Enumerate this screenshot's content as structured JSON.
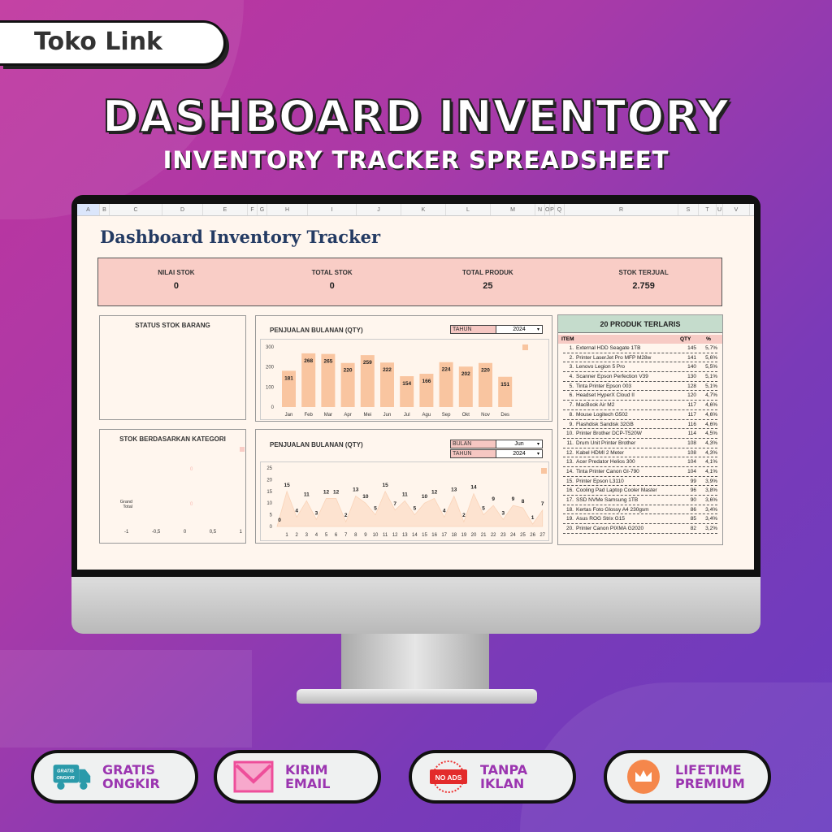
{
  "brand": "Toko Link",
  "header": {
    "title": "DASHBOARD INVENTORY",
    "subtitle": "INVENTORY TRACKER SPREADSHEET"
  },
  "sheet": {
    "columns": [
      "A",
      "B",
      "C",
      "D",
      "E",
      "F",
      "G",
      "H",
      "I",
      "J",
      "K",
      "L",
      "M",
      "N",
      "O",
      "P",
      "Q",
      "R",
      "S",
      "T",
      "U",
      "V"
    ],
    "title": "Dashboard Inventory Tracker",
    "kpis": [
      {
        "label": "NILAI STOK",
        "value": "0"
      },
      {
        "label": "TOTAL STOK",
        "value": "0"
      },
      {
        "label": "TOTAL PRODUK",
        "value": "25"
      },
      {
        "label": "STOK TERJUAL",
        "value": "2.759"
      }
    ],
    "status_panel": {
      "title": "STATUS STOK BARANG"
    },
    "kategori_panel": {
      "title": "STOK BERDASARKAN KATEGORI",
      "category_label": "Grand Total",
      "data_labels": [
        "0",
        "0"
      ],
      "x_ticks": [
        "-1",
        "-0,5",
        "0",
        "0,5",
        "1"
      ]
    },
    "monthly": {
      "title": "PENJUALAN BULANAN (QTY)",
      "filter_label": "TAHUN",
      "filter_value": "2024"
    },
    "daily": {
      "title": "PENJUALAN BULANAN (QTY)",
      "month_label": "BULAN",
      "month_value": "Jun",
      "year_label": "TAHUN",
      "year_value": "2024"
    },
    "top20": {
      "title": "20 PRODUK TERLARIS",
      "headers": [
        "ITEM",
        "QTY",
        "%"
      ],
      "rows": [
        [
          "1.",
          "External HDD Seagate 1TB",
          "145",
          "5,7%"
        ],
        [
          "2.",
          "Printer LaserJet Pro MFP M28w",
          "141",
          "5,6%"
        ],
        [
          "3.",
          "Lenovo Legion 5 Pro",
          "140",
          "5,5%"
        ],
        [
          "4.",
          "Scanner Epson Perfection V39",
          "130",
          "5,1%"
        ],
        [
          "5.",
          "Tinta Printer Epson 003",
          "128",
          "5,1%"
        ],
        [
          "6.",
          "Headset HyperX Cloud II",
          "120",
          "4,7%"
        ],
        [
          "7.",
          "MacBook Air M2",
          "117",
          "4,6%"
        ],
        [
          "8.",
          "Mouse Logitech G502",
          "117",
          "4,6%"
        ],
        [
          "9.",
          "Flashdisk Sandisk 32GB",
          "116",
          "4,6%"
        ],
        [
          "10.",
          "Printer Brother DCP-T520W",
          "114",
          "4,5%"
        ],
        [
          "11.",
          "Drum Unit Printer Brother",
          "108",
          "4,3%"
        ],
        [
          "12.",
          "Kabel HDMI 2 Meter",
          "108",
          "4,3%"
        ],
        [
          "13.",
          "Acer Predator Helios 300",
          "104",
          "4,1%"
        ],
        [
          "14.",
          "Tinta Printer Canon GI-790",
          "104",
          "4,1%"
        ],
        [
          "15.",
          "Printer Epson L3110",
          "99",
          "3,9%"
        ],
        [
          "16.",
          "Cooling Pad Laptop Cooler Master",
          "96",
          "3,8%"
        ],
        [
          "17.",
          "SSD NVMe Samsung 1TB",
          "90",
          "3,6%"
        ],
        [
          "18.",
          "Kertas Foto Glossy A4 230gsm",
          "86",
          "3,4%"
        ],
        [
          "19.",
          "Asus ROG Strix G15",
          "85",
          "3,4%"
        ],
        [
          "20.",
          "Printer Canon PIXMA G2020",
          "82",
          "3,2%"
        ]
      ]
    }
  },
  "chart_data": [
    {
      "type": "bar",
      "title": "PENJUALAN BULANAN (QTY)",
      "categories": [
        "Jan",
        "Feb",
        "Mar",
        "Apr",
        "Mei",
        "Jun",
        "Jul",
        "Agu",
        "Sep",
        "Okt",
        "Nov",
        "Des"
      ],
      "values": [
        181,
        268,
        265,
        220,
        259,
        222,
        154,
        166,
        224,
        202,
        220,
        151
      ],
      "ylim": [
        0,
        300
      ],
      "yticks": [
        0,
        100,
        200,
        300
      ],
      "color": "#f9c5a0",
      "grid": false
    },
    {
      "type": "area",
      "title": "PENJUALAN BULANAN (QTY)",
      "x": [
        0,
        1,
        2,
        3,
        4,
        5,
        6,
        7,
        8,
        9,
        10,
        11,
        12,
        13,
        14,
        15,
        16,
        17,
        18,
        19,
        20,
        21,
        22,
        23,
        24,
        25,
        26,
        27
      ],
      "values": [
        0,
        15,
        4,
        11,
        3,
        12,
        12,
        2,
        13,
        10,
        5,
        15,
        7,
        11,
        5,
        10,
        12,
        4,
        13,
        2,
        14,
        5,
        9,
        3,
        9,
        8,
        1,
        7
      ],
      "ylim": [
        0,
        25
      ],
      "yticks": [
        0,
        5,
        10,
        15,
        20,
        25
      ],
      "color": "#fde3d0",
      "grid": false
    }
  ],
  "badges": [
    {
      "icon": "truck-icon",
      "icon_text": "GRATIS ONGKIR",
      "line1": "GRATIS",
      "line2": "ONGKIR"
    },
    {
      "icon": "mail-icon",
      "line1": "KIRIM",
      "line2": "EMAIL"
    },
    {
      "icon": "no-ads-icon",
      "icon_text": "NO ADS",
      "line1": "TANPA",
      "line2": "IKLAN"
    },
    {
      "icon": "crown-icon",
      "line1": "LIFETIME",
      "line2": "PREMIUM"
    }
  ]
}
